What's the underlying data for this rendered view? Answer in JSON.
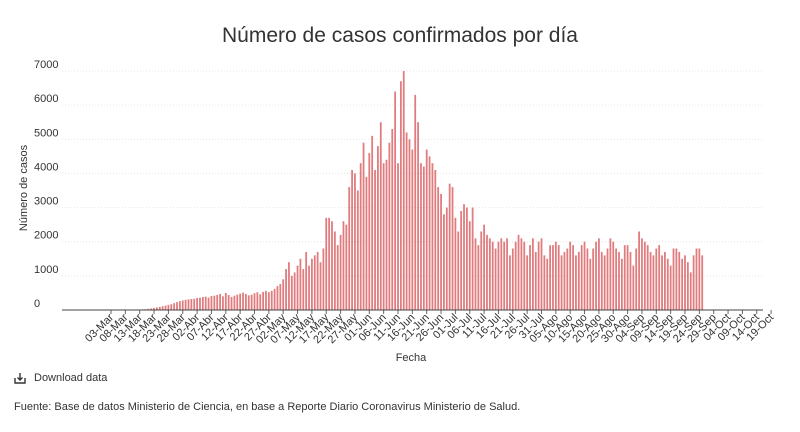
{
  "chart_data": {
    "type": "bar",
    "title": "Número de casos confirmados por día",
    "xlabel": "Fecha",
    "ylabel": "Número de casos",
    "ylim": [
      0,
      7000
    ],
    "yticks": [
      0,
      1000,
      2000,
      3000,
      4000,
      5000,
      6000,
      7000
    ],
    "bar_color": "#e07b7e",
    "start_date": "2020-03-03",
    "tick_labels": [
      "03-Mar",
      "08-Mar",
      "13-Mar",
      "18-Mar",
      "23-Mar",
      "28-Mar",
      "02-Abr",
      "07-Abr",
      "12-Abr",
      "17-Abr",
      "22-Abr",
      "27-Abr",
      "02-May",
      "07-May",
      "12-May",
      "17-May",
      "22-May",
      "27-May",
      "01-Jun",
      "06-Jun",
      "11-Jun",
      "16-Jun",
      "21-Jun",
      "26-Jun",
      "01-Jul",
      "06-Jul",
      "11-Jul",
      "16-Jul",
      "21-Jul",
      "26-Jul",
      "31-Jul",
      "05-Ago",
      "10-Ago",
      "15-Ago",
      "20-Ago",
      "25-Ago",
      "30-Ago",
      "04-Sep",
      "09-Sep",
      "14-Sep",
      "19-Sep",
      "24-Sep",
      "29-Sep",
      "04-Oct",
      "09-Oct",
      "14-Oct",
      "19-Oct"
    ],
    "values": [
      0,
      0,
      0,
      0,
      1,
      2,
      3,
      5,
      7,
      10,
      15,
      18,
      25,
      35,
      45,
      60,
      75,
      90,
      110,
      130,
      150,
      170,
      200,
      230,
      260,
      280,
      300,
      310,
      320,
      330,
      350,
      360,
      380,
      390,
      360,
      410,
      420,
      440,
      470,
      400,
      500,
      440,
      380,
      420,
      450,
      480,
      510,
      470,
      430,
      450,
      490,
      520,
      460,
      530,
      560,
      520,
      560,
      620,
      700,
      760,
      900,
      1200,
      1400,
      1000,
      1100,
      1300,
      1500,
      1200,
      1700,
      1300,
      1500,
      1600,
      1700,
      1400,
      1800,
      2700,
      2700,
      2600,
      2300,
      1900,
      2200,
      2600,
      2500,
      3600,
      4100,
      4000,
      3500,
      4300,
      4900,
      3900,
      4600,
      5100,
      4100,
      4800,
      5500,
      4300,
      4400,
      4900,
      5300,
      6400,
      4300,
      6700,
      7000,
      5200,
      5000,
      4700,
      6300,
      5500,
      4300,
      4200,
      4700,
      4500,
      4300,
      4100,
      3600,
      3400,
      2800,
      3000,
      3700,
      3600,
      2700,
      2300,
      2900,
      3100,
      3000,
      2600,
      3000,
      2100,
      1900,
      2300,
      2500,
      2200,
      2100,
      2000,
      1800,
      2000,
      2100,
      2000,
      2100,
      1600,
      1800,
      2000,
      2200,
      2100,
      2000,
      1600,
      1900,
      2100,
      1700,
      2000,
      2100,
      1600,
      1500,
      1900,
      1900,
      2000,
      1900,
      1600,
      1700,
      1800,
      2000,
      1900,
      1600,
      1700,
      1900,
      2000,
      1800,
      1500,
      1800,
      2000,
      2100,
      1700,
      1600,
      1800,
      2100,
      2000,
      1800,
      1700,
      1500,
      1900,
      1900,
      1700,
      1300,
      1800,
      2300,
      2100,
      2000,
      1900,
      1700,
      1600,
      1800,
      1900,
      1600,
      1700,
      1500,
      1300,
      1800,
      1800,
      1700,
      1500,
      1600,
      1400,
      1100,
      1600,
      1800,
      1800,
      1600
    ]
  },
  "download_label": "Download data",
  "source": "Fuente: Base de datos Ministerio de Ciencia, en base a Reporte Diario Coronavirus Ministerio de Salud."
}
